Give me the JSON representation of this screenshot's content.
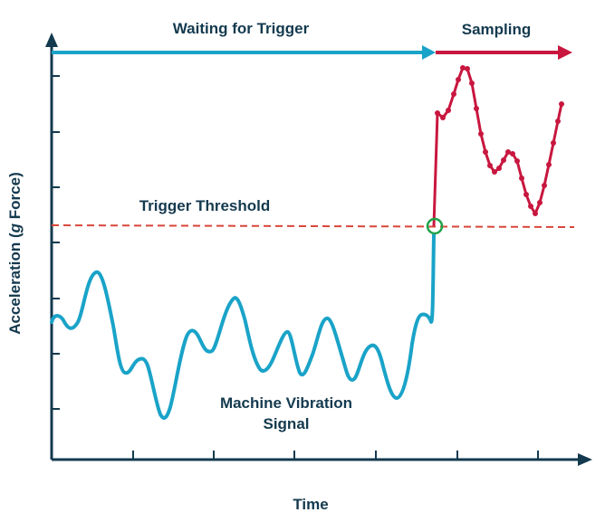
{
  "labels": {
    "waiting": "Waiting for Trigger",
    "sampling": "Sampling",
    "threshold": "Trigger Threshold",
    "signal_line1": "Machine Vibration",
    "signal_line2": "Signal",
    "x_axis": "Time",
    "y_axis_prefix": "Acceleration (",
    "y_axis_g": "g",
    "y_axis_suffix": " Force)"
  },
  "colors": {
    "axis": "#143a4f",
    "signal": "#1aa3c8",
    "sampling": "#c8173f",
    "threshold": "#d9463a",
    "trigger_marker": "#1fa34a",
    "text": "#143a4f"
  }
}
